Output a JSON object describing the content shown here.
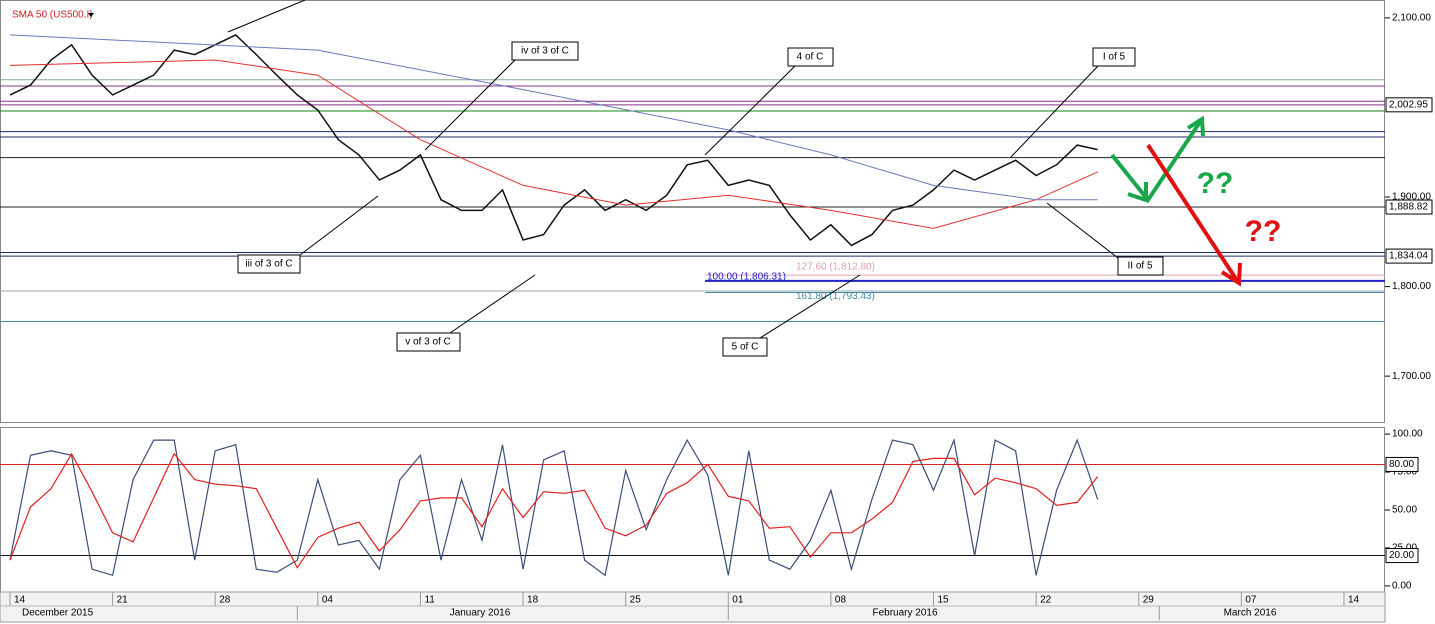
{
  "chart_data": {
    "type": "line",
    "xlim": [
      "2015-12-14",
      "2016-03-16"
    ],
    "xticks": [
      {
        "value": "2015-12-14",
        "label": "14"
      },
      {
        "value": "2015-12-21",
        "label": "21"
      },
      {
        "value": "2015-12-28",
        "label": "28"
      },
      {
        "value": "2016-01-04",
        "label": "04"
      },
      {
        "value": "2016-01-11",
        "label": "11"
      },
      {
        "value": "2016-01-18",
        "label": "18"
      },
      {
        "value": "2016-01-25",
        "label": "25"
      },
      {
        "value": "2016-02-01",
        "label": "01"
      },
      {
        "value": "2016-02-08",
        "label": "08"
      },
      {
        "value": "2016-02-15",
        "label": "15"
      },
      {
        "value": "2016-02-22",
        "label": "22"
      },
      {
        "value": "2016-02-29",
        "label": "29"
      },
      {
        "value": "2016-03-07",
        "label": "07"
      },
      {
        "value": "2016-03-14",
        "label": "14"
      }
    ],
    "months": [
      {
        "value": "2015-12-01",
        "label": "December 2015"
      },
      {
        "value": "2016-01-01",
        "label": "January 2016"
      },
      {
        "value": "2016-02-01",
        "label": "February 2016"
      },
      {
        "value": "2016-03-01",
        "label": "March 2016"
      }
    ],
    "x": [
      "2015-12-14",
      "2015-12-15",
      "2015-12-16",
      "2015-12-17",
      "2015-12-18",
      "2015-12-21",
      "2015-12-22",
      "2015-12-23",
      "2015-12-24",
      "2015-12-25",
      "2015-12-28",
      "2015-12-29",
      "2015-12-30",
      "2015-12-31",
      "2016-01-01",
      "2016-01-04",
      "2016-01-05",
      "2016-01-06",
      "2016-01-07",
      "2016-01-08",
      "2016-01-11",
      "2016-01-12",
      "2016-01-13",
      "2016-01-14",
      "2016-01-15",
      "2016-01-18",
      "2016-01-19",
      "2016-01-20",
      "2016-01-21",
      "2016-01-22",
      "2016-01-25",
      "2016-01-26",
      "2016-01-27",
      "2016-01-28",
      "2016-01-29",
      "2016-02-01",
      "2016-02-02",
      "2016-02-03",
      "2016-02-04",
      "2016-02-05",
      "2016-02-08",
      "2016-02-09",
      "2016-02-10",
      "2016-02-11",
      "2016-02-12",
      "2016-02-15",
      "2016-02-16",
      "2016-02-17",
      "2016-02-18",
      "2016-02-19",
      "2016-02-22",
      "2016-02-23",
      "2016-02-24",
      "2016-02-25"
    ],
    "price": {
      "ylim": [
        1651,
        2120
      ],
      "yticks": [
        {
          "value": 2100,
          "label": "2,100.00"
        },
        {
          "value": 1900,
          "label": "1,900.00"
        },
        {
          "value": 1800,
          "label": "1,800.00"
        },
        {
          "value": 1700,
          "label": "1,700.00"
        }
      ],
      "series": [
        {
          "color": "#111111",
          "values": [
            2014,
            2025,
            2053,
            2070,
            2036,
            2014,
            2025,
            2036,
            2064,
            2059,
            2070,
            2081,
            2059,
            2036,
            2014,
            1997,
            1964,
            1947,
            1919,
            1930,
            1947,
            1897,
            1885,
            1885,
            1908,
            1852,
            1858,
            1891,
            1908,
            1885,
            1897,
            1885,
            1902,
            1936,
            1941,
            1913,
            1919,
            1913,
            1880,
            1852,
            1869,
            1846,
            1858,
            1885,
            1891,
            1908,
            1930,
            1919,
            1930,
            1941,
            1924,
            1936,
            1958,
            1953
          ]
        },
        {
          "name": "SMA 50 (US500.I)",
          "color": "#e03030",
          "x": [
            "2015-12-14",
            "2015-12-28",
            "2016-01-04",
            "2016-01-11",
            "2016-01-18",
            "2016-01-25",
            "2016-02-01",
            "2016-02-08",
            "2016-02-15",
            "2016-02-22",
            "2016-02-25"
          ],
          "values": [
            2047,
            2053,
            2036,
            1964,
            1913,
            1891,
            1902,
            1885,
            1865,
            1897,
            1928
          ]
        },
        {
          "color": "#6a7ab8",
          "x": [
            "2015-12-14",
            "2016-01-04",
            "2016-01-18",
            "2016-02-01",
            "2016-02-08",
            "2016-02-15",
            "2016-02-22",
            "2016-02-25"
          ],
          "values": [
            2081,
            2064,
            2020,
            1975,
            1947,
            1913,
            1897,
            1897
          ]
        }
      ],
      "levels": [
        {
          "value": 2031,
          "color": "#88aa99"
        },
        {
          "value": 2024,
          "color": "#883388"
        },
        {
          "value": 2007,
          "color": "#883388"
        },
        {
          "value": 2002.95,
          "label": "2,002.95",
          "color": "#883388"
        },
        {
          "value": 1996,
          "color": "#118811"
        },
        {
          "value": 1973,
          "color": "#1a2a6a"
        },
        {
          "value": 1967,
          "color": "#1a2a6a"
        },
        {
          "value": 1944,
          "color": "#222222"
        },
        {
          "value": 1888.82,
          "label": "1,888.82",
          "color": "#222222"
        },
        {
          "value": 1838,
          "color": "#1a2a6a"
        },
        {
          "value": 1834.04,
          "label": "1,834.04",
          "color": "#1a2a6a"
        },
        {
          "value": 1795,
          "color": "#99aaaa"
        },
        {
          "value": 1761,
          "color": "#4a8a9a"
        }
      ],
      "fib": [
        {
          "label": "127.60 (1,812.80)",
          "value": 1812.8,
          "color": "#e0a0b0"
        },
        {
          "label": "100.00 (1,806.31)",
          "value": 1806.31,
          "color": "#2020cc"
        },
        {
          "label": "161.80 (1,793.43)",
          "value": 1793.43,
          "color": "#4a8aaa"
        }
      ]
    },
    "annotations": [
      "iv of 3 of C",
      "4 of C",
      "I of 5",
      "iii of 3 of C",
      "v of 3 of C",
      "5 of C",
      "II of 5"
    ],
    "question_marks": [
      {
        "text": "??",
        "color": "#1aa64a"
      },
      {
        "text": "??",
        "color": "#e01010"
      }
    ],
    "stochastic": {
      "ylim": [
        -4,
        104
      ],
      "yticks": [
        {
          "value": 100,
          "label": "100.00"
        },
        {
          "value": 75,
          "label": "75.00"
        },
        {
          "value": 50,
          "label": "50.00"
        },
        {
          "value": 25,
          "label": "25.00"
        },
        {
          "value": 0,
          "label": "0.00"
        }
      ],
      "levels": [
        {
          "value": 80,
          "label": "80.00",
          "color": "#e02020"
        },
        {
          "value": 20,
          "label": "20.00",
          "color": "#111111"
        }
      ],
      "series": [
        {
          "color": "#3a4d7a",
          "values": [
            17,
            86,
            89,
            86,
            11,
            7,
            70,
            96,
            96,
            17,
            89,
            93,
            11,
            9,
            17,
            70,
            27,
            30,
            11,
            70,
            86,
            17,
            70,
            30,
            93,
            11,
            83,
            89,
            17,
            7,
            76,
            37,
            70,
            96,
            73,
            7,
            89,
            17,
            11,
            30,
            63,
            11,
            57,
            96,
            93,
            63,
            96,
            20,
            96,
            89,
            7,
            63,
            96,
            57
          ]
        },
        {
          "color": "#e02020",
          "values": [
            17,
            52,
            64,
            87,
            62,
            35,
            29,
            58,
            87,
            70,
            67,
            66,
            64,
            38,
            12,
            32,
            38,
            42,
            23,
            37,
            56,
            58,
            58,
            39,
            64,
            45,
            62,
            61,
            63,
            38,
            33,
            40,
            61,
            68,
            80,
            59,
            56,
            38,
            39,
            19,
            35,
            35,
            44,
            55,
            82,
            84,
            84,
            60,
            71,
            68,
            64,
            53,
            55,
            72
          ]
        }
      ]
    }
  }
}
